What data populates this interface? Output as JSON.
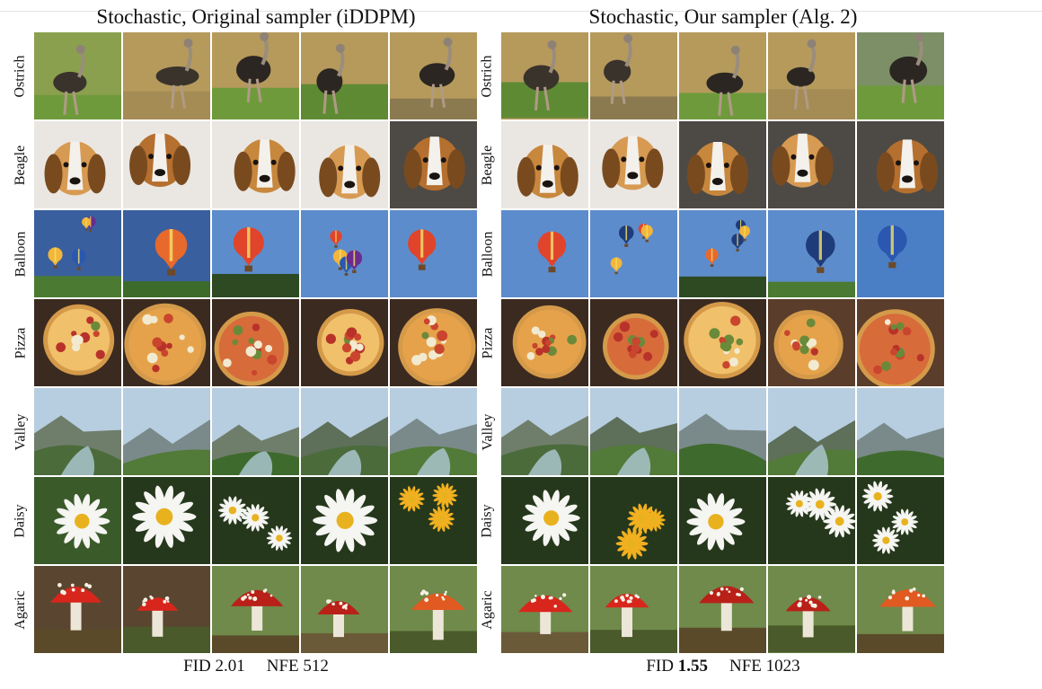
{
  "panels": [
    {
      "id": "left",
      "title": "Stochastic, Original sampler (iDDPM)",
      "fid_label": "FID",
      "fid_value": "2.01",
      "fid_bold": false,
      "nfe_label": "NFE",
      "nfe_value": "512"
    },
    {
      "id": "right",
      "title": "Stochastic, Our sampler (Alg. 2)",
      "fid_label": "FID",
      "fid_value": "1.55",
      "fid_bold": true,
      "nfe_label": "NFE",
      "nfe_value": "1023"
    }
  ],
  "classes": [
    "Ostrich",
    "Beagle",
    "Balloon",
    "Pizza",
    "Valley",
    "Daisy",
    "Agaric"
  ],
  "images_per_row": 5
}
